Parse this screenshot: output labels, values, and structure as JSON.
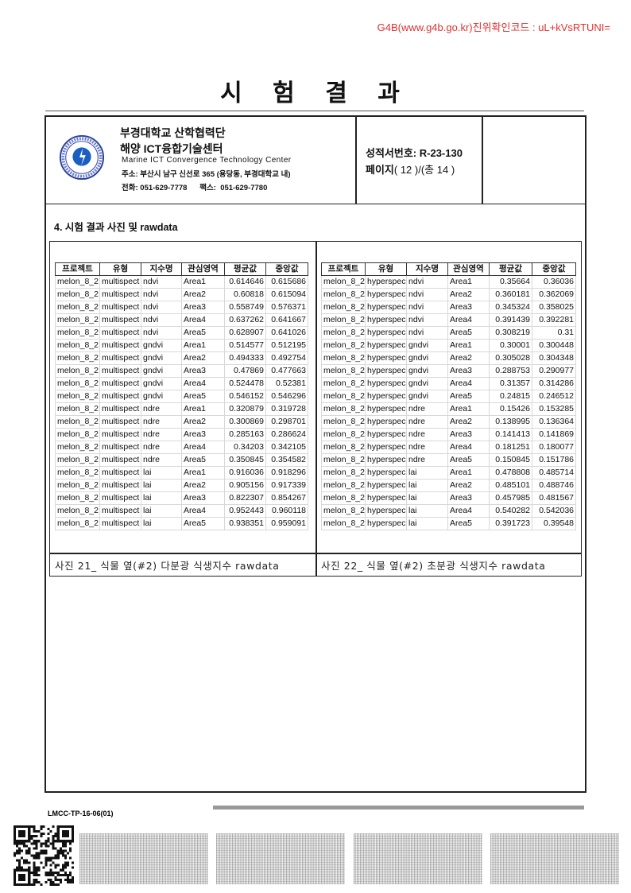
{
  "verification": "G4B(www.g4b.go.kr)진위확인코드 : uL+kVsRTUNI=",
  "title": "시 험 결 과",
  "header": {
    "org_name": "부경대학교 산학협력단",
    "center_name": "해양 ICT융합기술센터",
    "center_name_en": "Marine ICT Convergence Technology Center",
    "address": "주소: 부산시 남구 신선로 365 (용당동, 부경대학교 내)",
    "phone": "전화: 051-629-7778      팩스:  051-629-7780",
    "report_no": "성적서번호: R-23-130",
    "page_label": "페이지",
    "page_info": "( 12 )/(총 14 )",
    "logo_icon": "pukyong-national-university-seal"
  },
  "section_title": "4. 시험 결과 사진 및 rawdata",
  "columns": [
    "프로젝트",
    "유형",
    "지수명",
    "관심영역",
    "평균값",
    "중앙값"
  ],
  "table_left": {
    "caption": "사진 21_ 식물 옆(#2) 다분광 식생지수 rawdata",
    "rows": [
      [
        "melon_8_2",
        "multispect",
        "ndvi",
        "Area1",
        "0.614646",
        "0.615686"
      ],
      [
        "melon_8_2",
        "multispect",
        "ndvi",
        "Area2",
        "0.60818",
        "0.615094"
      ],
      [
        "melon_8_2",
        "multispect",
        "ndvi",
        "Area3",
        "0.558749",
        "0.576371"
      ],
      [
        "melon_8_2",
        "multispect",
        "ndvi",
        "Area4",
        "0.637262",
        "0.641667"
      ],
      [
        "melon_8_2",
        "multispect",
        "ndvi",
        "Area5",
        "0.628907",
        "0.641026"
      ],
      [
        "melon_8_2",
        "multispect",
        "gndvi",
        "Area1",
        "0.514577",
        "0.512195"
      ],
      [
        "melon_8_2",
        "multispect",
        "gndvi",
        "Area2",
        "0.494333",
        "0.492754"
      ],
      [
        "melon_8_2",
        "multispect",
        "gndvi",
        "Area3",
        "0.47869",
        "0.477663"
      ],
      [
        "melon_8_2",
        "multispect",
        "gndvi",
        "Area4",
        "0.524478",
        "0.52381"
      ],
      [
        "melon_8_2",
        "multispect",
        "gndvi",
        "Area5",
        "0.546152",
        "0.546296"
      ],
      [
        "melon_8_2",
        "multispect",
        "ndre",
        "Area1",
        "0.320879",
        "0.319728"
      ],
      [
        "melon_8_2",
        "multispect",
        "ndre",
        "Area2",
        "0.300869",
        "0.298701"
      ],
      [
        "melon_8_2",
        "multispect",
        "ndre",
        "Area3",
        "0.285163",
        "0.286624"
      ],
      [
        "melon_8_2",
        "multispect",
        "ndre",
        "Area4",
        "0.34203",
        "0.342105"
      ],
      [
        "melon_8_2",
        "multispect",
        "ndre",
        "Area5",
        "0.350845",
        "0.354582"
      ],
      [
        "melon_8_2",
        "multispect",
        "lai",
        "Area1",
        "0.916036",
        "0.918296"
      ],
      [
        "melon_8_2",
        "multispect",
        "lai",
        "Area2",
        "0.905156",
        "0.917339"
      ],
      [
        "melon_8_2",
        "multispect",
        "lai",
        "Area3",
        "0.822307",
        "0.854267"
      ],
      [
        "melon_8_2",
        "multispect",
        "lai",
        "Area4",
        "0.952443",
        "0.960118"
      ],
      [
        "melon_8_2",
        "multispect",
        "lai",
        "Area5",
        "0.938351",
        "0.959091"
      ]
    ]
  },
  "table_right": {
    "caption": "사진 22_ 식물 옆(#2) 초분광 식생지수 rawdata",
    "rows": [
      [
        "melon_8_2",
        "hyperspec",
        "ndvi",
        "Area1",
        "0.35664",
        "0.36036"
      ],
      [
        "melon_8_2",
        "hyperspec",
        "ndvi",
        "Area2",
        "0.360181",
        "0.362069"
      ],
      [
        "melon_8_2",
        "hyperspec",
        "ndvi",
        "Area3",
        "0.345324",
        "0.358025"
      ],
      [
        "melon_8_2",
        "hyperspec",
        "ndvi",
        "Area4",
        "0.391439",
        "0.392281"
      ],
      [
        "melon_8_2",
        "hyperspec",
        "ndvi",
        "Area5",
        "0.308219",
        "0.31"
      ],
      [
        "melon_8_2",
        "hyperspec",
        "gndvi",
        "Area1",
        "0.30001",
        "0.300448"
      ],
      [
        "melon_8_2",
        "hyperspec",
        "gndvi",
        "Area2",
        "0.305028",
        "0.304348"
      ],
      [
        "melon_8_2",
        "hyperspec",
        "gndvi",
        "Area3",
        "0.288753",
        "0.290977"
      ],
      [
        "melon_8_2",
        "hyperspec",
        "gndvi",
        "Area4",
        "0.31357",
        "0.314286"
      ],
      [
        "melon_8_2",
        "hyperspec",
        "gndvi",
        "Area5",
        "0.24815",
        "0.246512"
      ],
      [
        "melon_8_2",
        "hyperspec",
        "ndre",
        "Area1",
        "0.15426",
        "0.153285"
      ],
      [
        "melon_8_2",
        "hyperspec",
        "ndre",
        "Area2",
        "0.138995",
        "0.136364"
      ],
      [
        "melon_8_2",
        "hyperspec",
        "ndre",
        "Area3",
        "0.141413",
        "0.141869"
      ],
      [
        "melon_8_2",
        "hyperspec",
        "ndre",
        "Area4",
        "0.181251",
        "0.180077"
      ],
      [
        "melon_8_2",
        "hyperspec",
        "ndre",
        "Area5",
        "0.150845",
        "0.151786"
      ],
      [
        "melon_8_2",
        "hyperspec",
        "lai",
        "Area1",
        "0.478808",
        "0.485714"
      ],
      [
        "melon_8_2",
        "hyperspec",
        "lai",
        "Area2",
        "0.485101",
        "0.488746"
      ],
      [
        "melon_8_2",
        "hyperspec",
        "lai",
        "Area3",
        "0.457985",
        "0.481567"
      ],
      [
        "melon_8_2",
        "hyperspec",
        "lai",
        "Area4",
        "0.540282",
        "0.542036"
      ],
      [
        "melon_8_2",
        "hyperspec",
        "lai",
        "Area5",
        "0.391723",
        "0.39548"
      ]
    ]
  },
  "footer": {
    "form_code": "LMCC-TP-16-06(01)",
    "qr_icon": "qr-code",
    "colors": {
      "verification": "#e03030"
    }
  }
}
